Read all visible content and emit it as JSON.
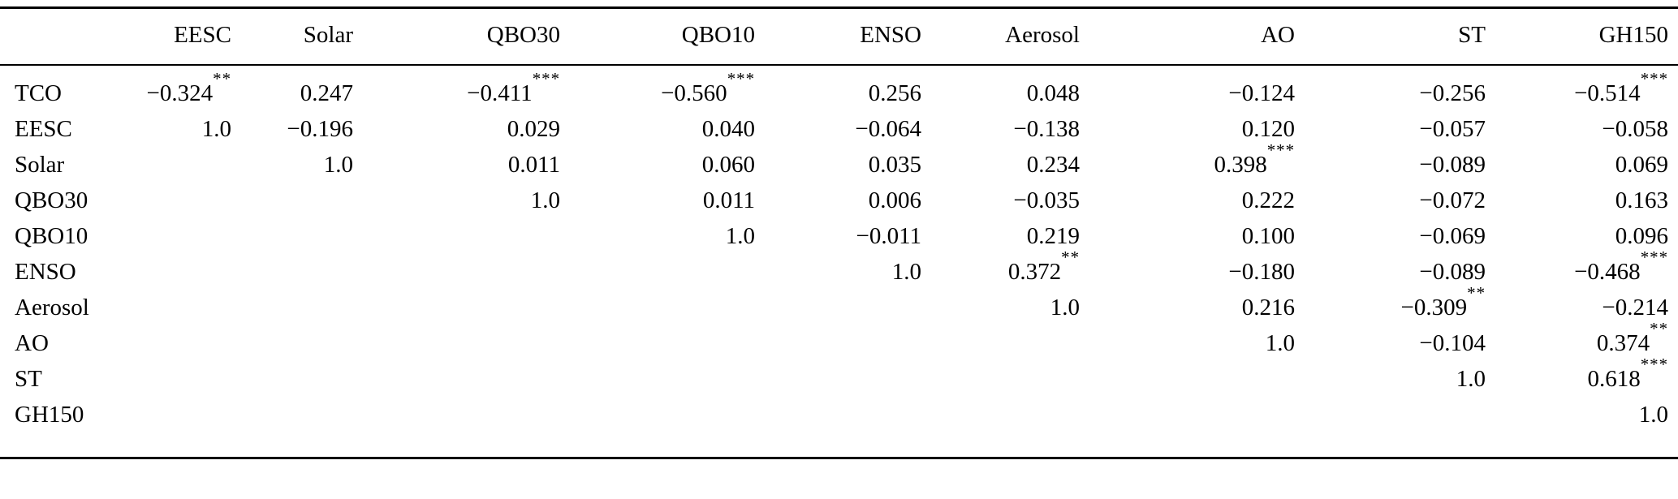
{
  "table": {
    "columns": [
      "",
      "EESC",
      "Solar",
      "QBO30",
      "QBO10",
      "ENSO",
      "Aerosol",
      "AO",
      "ST",
      "GH150"
    ],
    "rows": [
      {
        "label": "TCO",
        "cells": [
          "−0.324**",
          "0.247",
          "−0.411***",
          "−0.560***",
          "0.256",
          "0.048",
          "−0.124",
          "−0.256",
          "−0.514***"
        ]
      },
      {
        "label": "EESC",
        "cells": [
          "1.0",
          "−0.196",
          "0.029",
          "0.040",
          "−0.064",
          "−0.138",
          "0.120",
          "−0.057",
          "−0.058"
        ]
      },
      {
        "label": "Solar",
        "cells": [
          "",
          "1.0",
          "0.011",
          "0.060",
          "0.035",
          "0.234",
          "0.398***",
          "−0.089",
          "0.069"
        ]
      },
      {
        "label": "QBO30",
        "cells": [
          "",
          "",
          "1.0",
          "0.011",
          "0.006",
          "−0.035",
          "0.222",
          "−0.072",
          "0.163"
        ]
      },
      {
        "label": "QBO10",
        "cells": [
          "",
          "",
          "",
          "1.0",
          "−0.011",
          "0.219",
          "0.100",
          "−0.069",
          "0.096"
        ]
      },
      {
        "label": "ENSO",
        "cells": [
          "",
          "",
          "",
          "",
          "1.0",
          "0.372**",
          "−0.180",
          "−0.089",
          "−0.468***"
        ]
      },
      {
        "label": "Aerosol",
        "cells": [
          "",
          "",
          "",
          "",
          "",
          "1.0",
          "0.216",
          "−0.309**",
          "−0.214"
        ]
      },
      {
        "label": "AO",
        "cells": [
          "",
          "",
          "",
          "",
          "",
          "",
          "1.0",
          "−0.104",
          "0.374**"
        ]
      },
      {
        "label": "ST",
        "cells": [
          "",
          "",
          "",
          "",
          "",
          "",
          "",
          "1.0",
          "0.618***"
        ]
      },
      {
        "label": "GH150",
        "cells": [
          "",
          "",
          "",
          "",
          "",
          "",
          "",
          "",
          "1.0"
        ]
      }
    ]
  },
  "colors": {
    "background": "#ffffff",
    "text": "#000000",
    "rule": "#000000"
  }
}
